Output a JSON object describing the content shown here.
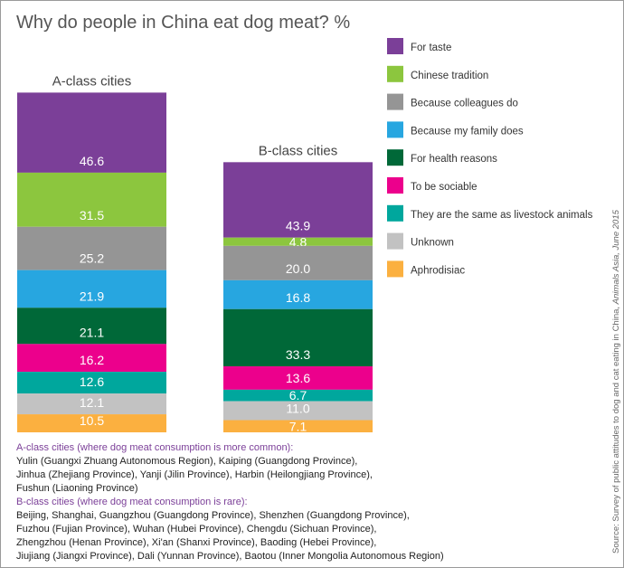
{
  "title": "Why do people in China eat dog meat? %",
  "chart_data": {
    "type": "bar",
    "stacked": true,
    "categories": [
      "A-class cities",
      "B-class cities"
    ],
    "series": [
      {
        "name": "For taste",
        "color": "#7b3f98",
        "values": [
          46.6,
          43.9
        ]
      },
      {
        "name": "Chinese tradition",
        "color": "#8cc63e",
        "values": [
          31.5,
          4.8
        ]
      },
      {
        "name": "Because colleagues do",
        "color": "#959595",
        "values": [
          25.2,
          20.0
        ]
      },
      {
        "name": "Because my family does",
        "color": "#27a6e0",
        "values": [
          21.9,
          16.8
        ]
      },
      {
        "name": "For health reasons",
        "color": "#006838",
        "values": [
          21.1,
          33.3
        ]
      },
      {
        "name": "To be sociable",
        "color": "#ec008c",
        "values": [
          16.2,
          13.6
        ]
      },
      {
        "name": "They are the same as livestock animals",
        "color": "#00a79d",
        "values": [
          12.6,
          6.7
        ]
      },
      {
        "name": "Unknown",
        "color": "#c2c2c2",
        "values": [
          12.1,
          11.0
        ]
      },
      {
        "name": "Aphrodisiac",
        "color": "#fbb040",
        "values": [
          10.5,
          7.1
        ]
      }
    ],
    "value_labels": [
      [
        "46.6",
        "31.5",
        "25.2",
        "21.9",
        "21.1",
        "16.2",
        "12.6",
        "12.1",
        "10.5"
      ],
      [
        "43.9",
        "4.8",
        "20.0",
        "16.8",
        "33.3",
        "13.6",
        "6.7",
        "11.0",
        "7.1"
      ]
    ],
    "legend_position": "right",
    "grid": false
  },
  "notes": {
    "a_heading": "A-class cities (where dog meat consumption is more common):",
    "a_lines": [
      "Yulin (Guangxi Zhuang Autonomous Region), Kaiping (Guangdong Province),",
      "Jinhua (Zhejiang Province), Yanji (Jilin Province), Harbin (Heilongjiang Province),",
      "Fushun (Liaoning Province)"
    ],
    "b_heading": "B-class cities (where dog meat consumption is rare):",
    "b_lines": [
      "Beijing, Shanghai, Guangzhou (Guangdong Province), Shenzhen (Guangdong Province),",
      "Fuzhou (Fujian Province), Wuhan (Hubei Province), Chengdu (Sichuan Province),",
      "Zhengzhou (Henan Province), Xi'an (Shanxi Province), Baoding (Hebei Province),",
      "Jiujiang (Jiangxi Province), Dali (Yunnan Province), Baotou (Inner Mongolia Autonomous Region)"
    ]
  },
  "source": {
    "text": "Source: Survey of public attitudes to dog and cat eating in China, ",
    "publisher": "Animals Asia, June 2015"
  }
}
